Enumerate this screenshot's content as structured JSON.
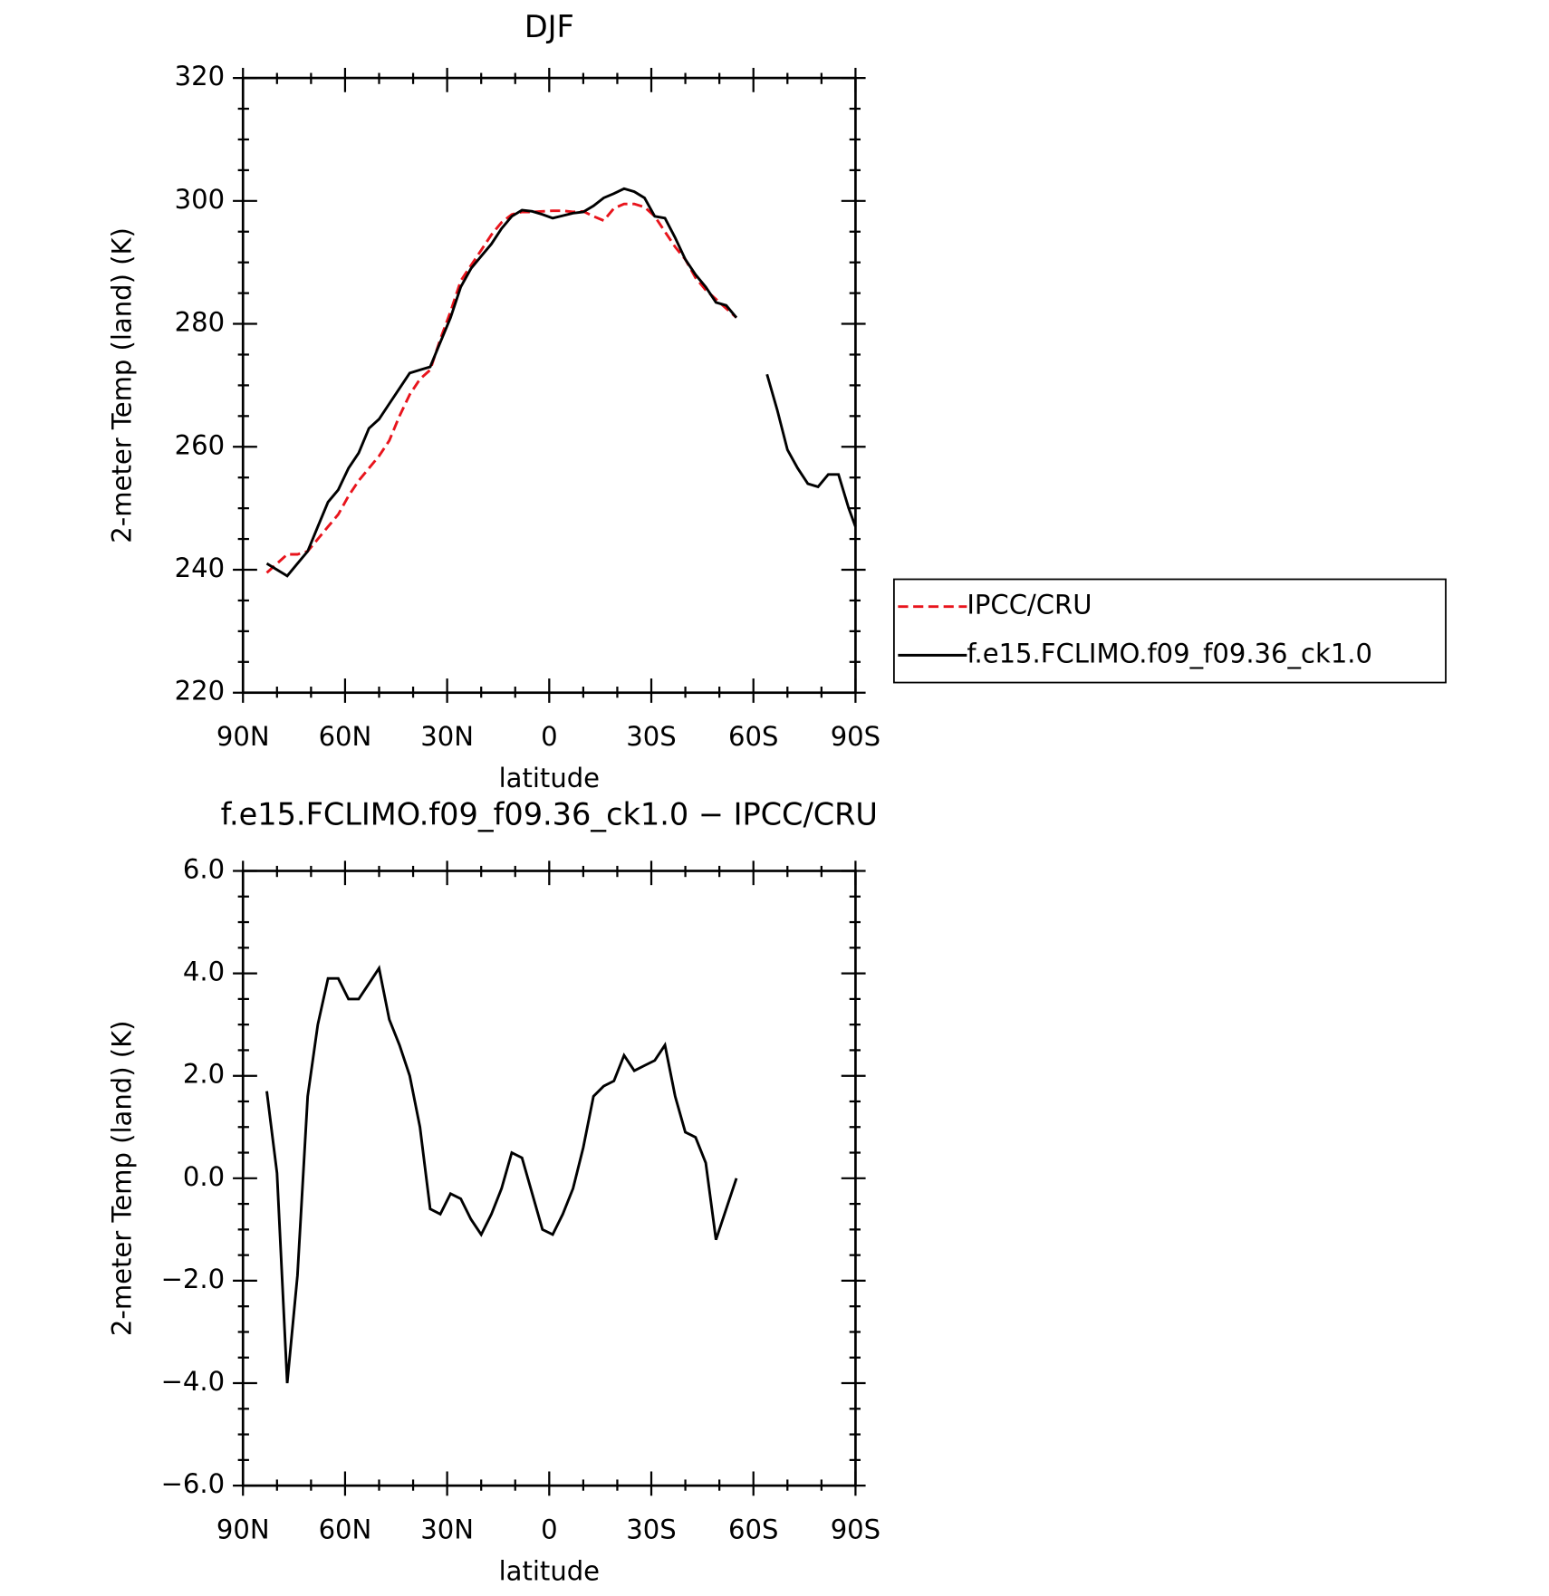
{
  "chart_data": [
    {
      "type": "line",
      "title": "DJF",
      "x_label": "latitude",
      "y_label": "2-meter Temp (land) (K)",
      "x": [
        83,
        80,
        77,
        74,
        71,
        68,
        65,
        62,
        59,
        56,
        53,
        50,
        47,
        44,
        41,
        38,
        35,
        32,
        29,
        26,
        23,
        20,
        17,
        14,
        11,
        8,
        5,
        2,
        -1,
        -4,
        -7,
        -10,
        -13,
        -16,
        -19,
        -22,
        -25,
        -28,
        -31,
        -34,
        -37,
        -40,
        -43,
        -46,
        -49,
        -52,
        -55,
        -58,
        -61,
        -64,
        -67,
        -70,
        -73,
        -76,
        -79,
        -82,
        -85,
        -88,
        -90
      ],
      "xlim": [
        90,
        -90
      ],
      "xticks": [
        {
          "value": 90,
          "label": "90N"
        },
        {
          "value": 60,
          "label": "60N"
        },
        {
          "value": 30,
          "label": "30N"
        },
        0,
        {
          "value": -30,
          "label": "30S"
        },
        {
          "value": -60,
          "label": "60S"
        },
        {
          "value": -90,
          "label": "90S"
        }
      ],
      "ylim": [
        220,
        320
      ],
      "yticks": [
        220,
        240,
        260,
        280,
        300,
        320
      ],
      "legend": "right",
      "series": [
        {
          "name": "IPCC/CRU",
          "color": "#e8141c",
          "dash": "dashed",
          "values": [
            239.5,
            241,
            242.5,
            242.5,
            243,
            245,
            247,
            249,
            252,
            254.5,
            256.5,
            258.5,
            261,
            265,
            268.5,
            271,
            272.5,
            277.5,
            282,
            287,
            289.5,
            292,
            294.5,
            296.5,
            297.8,
            298.2,
            298.2,
            298.3,
            298.4,
            298.4,
            298.2,
            298.3,
            297.5,
            296.8,
            298.8,
            299.5,
            299.5,
            299,
            297.5,
            295,
            292.5,
            290.5,
            287.5,
            285.5,
            284,
            282.5,
            281,
            null,
            null,
            null,
            null,
            null,
            null,
            null,
            null,
            null,
            null,
            null,
            null
          ]
        },
        {
          "name": "f.e15.FCLIMO.f09_f09.36_ck1.0",
          "color": "#000000",
          "dash": "solid",
          "values": [
            241,
            240,
            239,
            241,
            243,
            247,
            251,
            253,
            256.5,
            259,
            263,
            264.5,
            267,
            269.5,
            272,
            272.5,
            273,
            277,
            281,
            286,
            289,
            291,
            293,
            295.5,
            297.5,
            298.5,
            298.3,
            297.8,
            297.2,
            297.6,
            298,
            298.2,
            299.2,
            300.5,
            301.2,
            302,
            301.5,
            300.5,
            297.5,
            297.2,
            294,
            290.5,
            288,
            286,
            283.5,
            283,
            281,
            null,
            null,
            271.8,
            266,
            259.5,
            256.5,
            254,
            253.5,
            255.5,
            255.5,
            250,
            247
          ]
        }
      ]
    },
    {
      "type": "line",
      "title": "f.e15.FCLIMO.f09_f09.36_ck1.0 − IPCC/CRU",
      "x_label": "latitude",
      "y_label": "2-meter Temp (land) (K)",
      "x": [
        83,
        80,
        77,
        74,
        71,
        68,
        65,
        62,
        59,
        56,
        53,
        50,
        47,
        44,
        41,
        38,
        35,
        32,
        29,
        26,
        23,
        20,
        17,
        14,
        11,
        8,
        5,
        2,
        -1,
        -4,
        -7,
        -10,
        -13,
        -16,
        -19,
        -22,
        -25,
        -28,
        -31,
        -34,
        -37,
        -40,
        -43,
        -46,
        -49,
        -52,
        -55
      ],
      "xlim": [
        90,
        -90
      ],
      "xticks": [
        {
          "value": 90,
          "label": "90N"
        },
        {
          "value": 60,
          "label": "60N"
        },
        {
          "value": 30,
          "label": "30N"
        },
        0,
        {
          "value": -30,
          "label": "30S"
        },
        {
          "value": -60,
          "label": "60S"
        },
        {
          "value": -90,
          "label": "90S"
        }
      ],
      "ylim": [
        -6,
        6
      ],
      "yticks": [
        {
          "value": -6,
          "label": "−6.0"
        },
        {
          "value": -4,
          "label": "−4.0"
        },
        {
          "value": -2,
          "label": "−2.0"
        },
        {
          "value": 0,
          "label": "0.0"
        },
        {
          "value": 2,
          "label": "2.0"
        },
        {
          "value": 4,
          "label": "4.0"
        },
        {
          "value": 6,
          "label": "6.0"
        }
      ],
      "series": [
        {
          "color": "#000000",
          "dash": "solid",
          "values": [
            1.7,
            0.1,
            -4,
            -1.9,
            1.6,
            3,
            3.9,
            3.9,
            3.5,
            3.5,
            3.8,
            4.1,
            3.1,
            2.6,
            2,
            1,
            -0.6,
            -0.7,
            -0.3,
            -0.4,
            -0.8,
            -1.1,
            -0.7,
            -0.2,
            0.5,
            0.4,
            -0.3,
            -1,
            -1.1,
            -0.7,
            -0.2,
            0.6,
            1.6,
            1.8,
            1.9,
            2.4,
            2.1,
            2.2,
            2.3,
            2.6,
            1.6,
            0.9,
            0.8,
            0.3,
            -1.2,
            -0.6,
            0
          ]
        }
      ]
    }
  ]
}
